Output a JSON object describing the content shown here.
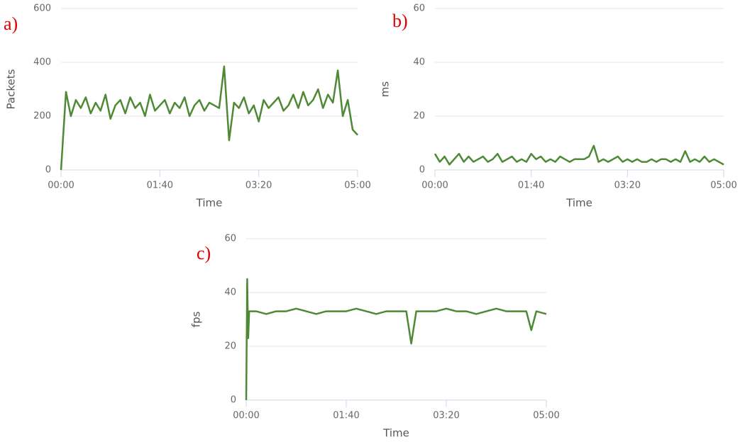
{
  "chart_data": [
    {
      "type": "line",
      "label": "a)",
      "xlabel": "Time",
      "ylabel": "Packets",
      "color": "#4e8a35",
      "x": [
        0,
        5,
        10,
        15,
        20,
        25,
        30,
        35,
        40,
        45,
        50,
        55,
        60,
        65,
        70,
        75,
        80,
        85,
        90,
        95,
        100,
        105,
        110,
        115,
        120,
        125,
        130,
        135,
        140,
        145,
        150,
        155,
        160,
        165,
        170,
        175,
        180,
        185,
        190,
        195,
        200,
        205,
        210,
        215,
        220,
        225,
        230,
        235,
        240,
        245,
        250,
        255,
        260,
        265,
        270,
        275,
        280,
        285,
        290,
        295,
        300
      ],
      "values": [
        0,
        290,
        200,
        260,
        230,
        270,
        210,
        250,
        220,
        280,
        190,
        240,
        260,
        210,
        270,
        230,
        250,
        200,
        280,
        220,
        240,
        260,
        210,
        250,
        230,
        270,
        200,
        240,
        260,
        220,
        250,
        240,
        230,
        385,
        110,
        250,
        230,
        270,
        210,
        240,
        180,
        260,
        230,
        250,
        270,
        220,
        240,
        280,
        230,
        290,
        240,
        260,
        300,
        230,
        280,
        250,
        370,
        200,
        260,
        150,
        130
      ],
      "xlim": [
        0,
        300
      ],
      "xticks": [
        {
          "value": 0,
          "label": "00:00"
        },
        {
          "value": 100,
          "label": "01:40"
        },
        {
          "value": 200,
          "label": "03:20"
        },
        {
          "value": 300,
          "label": "05:00"
        }
      ],
      "ylim": [
        0,
        600
      ],
      "yticks": [
        0,
        200,
        400,
        600
      ],
      "grid": true
    },
    {
      "type": "line",
      "label": "b)",
      "xlabel": "Time",
      "ylabel": "ms",
      "color": "#4e8a35",
      "x": [
        0,
        5,
        10,
        15,
        20,
        25,
        30,
        35,
        40,
        45,
        50,
        55,
        60,
        65,
        70,
        75,
        80,
        85,
        90,
        95,
        100,
        105,
        110,
        115,
        120,
        125,
        130,
        135,
        140,
        145,
        150,
        155,
        160,
        165,
        170,
        175,
        180,
        185,
        190,
        195,
        200,
        205,
        210,
        215,
        220,
        225,
        230,
        235,
        240,
        245,
        250,
        255,
        260,
        265,
        270,
        275,
        280,
        285,
        290,
        295,
        300
      ],
      "values": [
        6,
        3,
        5,
        2,
        4,
        6,
        3,
        5,
        3,
        4,
        5,
        3,
        4,
        6,
        3,
        4,
        5,
        3,
        4,
        3,
        6,
        4,
        5,
        3,
        4,
        3,
        5,
        4,
        3,
        4,
        4,
        4,
        5,
        9,
        3,
        4,
        3,
        4,
        5,
        3,
        4,
        3,
        4,
        3,
        3,
        4,
        3,
        4,
        4,
        3,
        4,
        3,
        7,
        3,
        4,
        3,
        5,
        3,
        4,
        3,
        2
      ],
      "xlim": [
        0,
        300
      ],
      "xticks": [
        {
          "value": 0,
          "label": "00:00"
        },
        {
          "value": 100,
          "label": "01:40"
        },
        {
          "value": 200,
          "label": "03:20"
        },
        {
          "value": 300,
          "label": "05:00"
        }
      ],
      "ylim": [
        0,
        60
      ],
      "yticks": [
        0,
        20,
        40,
        60
      ],
      "grid": true
    },
    {
      "type": "line",
      "label": "c)",
      "xlabel": "Time",
      "ylabel": "fps",
      "color": "#4e8a35",
      "x": [
        0,
        1,
        2,
        3,
        10,
        20,
        30,
        40,
        50,
        60,
        70,
        80,
        90,
        100,
        110,
        120,
        130,
        140,
        150,
        160,
        165,
        170,
        180,
        190,
        200,
        210,
        220,
        230,
        240,
        250,
        260,
        270,
        280,
        285,
        290,
        300
      ],
      "values": [
        0,
        45,
        23,
        33,
        33,
        32,
        33,
        33,
        34,
        33,
        32,
        33,
        33,
        33,
        34,
        33,
        32,
        33,
        33,
        33,
        21,
        33,
        33,
        33,
        34,
        33,
        33,
        32,
        33,
        34,
        33,
        33,
        33,
        26,
        33,
        32
      ],
      "xlim": [
        0,
        300
      ],
      "xticks": [
        {
          "value": 0,
          "label": "00:00"
        },
        {
          "value": 100,
          "label": "01:40"
        },
        {
          "value": 200,
          "label": "03:20"
        },
        {
          "value": 300,
          "label": "05:00"
        }
      ],
      "ylim": [
        0,
        60
      ],
      "yticks": [
        0,
        20,
        40,
        60
      ],
      "grid": true
    }
  ]
}
